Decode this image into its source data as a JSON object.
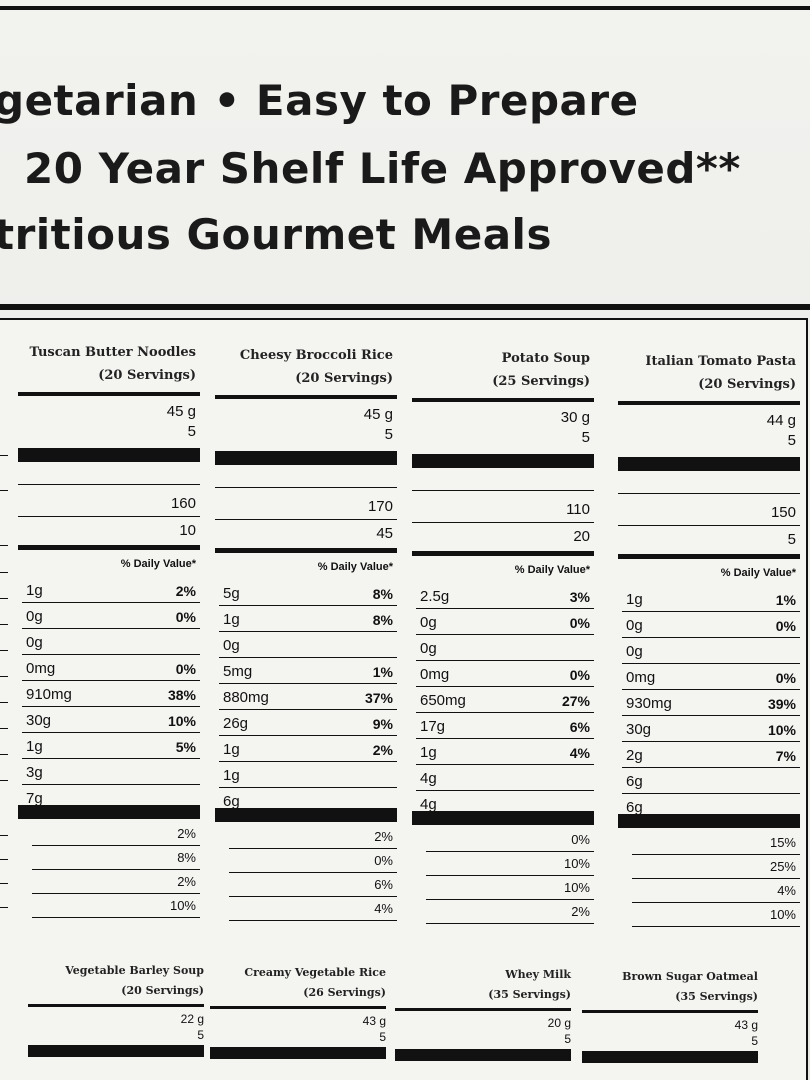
{
  "header": {
    "lines": [
      "getarian  •  Easy to Prepare",
      "20 Year Shelf Life Approved**",
      "tritious Gourmet Meals"
    ]
  },
  "columns": [
    {
      "name": "Tuscan Butter Noodles",
      "servings": "(20 Servings)",
      "serving_size": "45 g",
      "count": "5",
      "calories": "160",
      "fat_calories": "10",
      "dv_header": "% Daily Value*",
      "rows": [
        {
          "amount": "1g",
          "dv": "2%"
        },
        {
          "amount": "0g",
          "dv": "0%"
        },
        {
          "amount": "0g"
        },
        {
          "amount": "0mg",
          "dv": "0%"
        },
        {
          "amount": "910mg",
          "dv": "38%"
        },
        {
          "amount": "30g",
          "dv": "10%"
        },
        {
          "amount": "1g",
          "dv": "5%"
        },
        {
          "amount": "3g"
        },
        {
          "amount": "7g"
        }
      ],
      "vitamins": [
        "2%",
        "8%",
        "2%",
        "10%"
      ]
    },
    {
      "name": "Cheesy Broccoli Rice",
      "servings": "(20 Servings)",
      "serving_size": "45 g",
      "count": "5",
      "calories": "170",
      "fat_calories": "45",
      "dv_header": "% Daily Value*",
      "rows": [
        {
          "amount": "5g",
          "dv": "8%"
        },
        {
          "amount": "1g",
          "dv": "8%"
        },
        {
          "amount": "0g"
        },
        {
          "amount": "5mg",
          "dv": "1%"
        },
        {
          "amount": "880mg",
          "dv": "37%"
        },
        {
          "amount": "26g",
          "dv": "9%"
        },
        {
          "amount": "1g",
          "dv": "2%"
        },
        {
          "amount": "1g"
        },
        {
          "amount": "6g"
        }
      ],
      "vitamins": [
        "2%",
        "0%",
        "6%",
        "4%"
      ]
    },
    {
      "name": "Potato Soup",
      "servings": "(25 Servings)",
      "serving_size": "30 g",
      "count": "5",
      "calories": "110",
      "fat_calories": "20",
      "dv_header": "% Daily Value*",
      "rows": [
        {
          "amount": "2.5g",
          "dv": "3%"
        },
        {
          "amount": "0g",
          "dv": "0%"
        },
        {
          "amount": "0g"
        },
        {
          "amount": "0mg",
          "dv": "0%"
        },
        {
          "amount": "650mg",
          "dv": "27%"
        },
        {
          "amount": "17g",
          "dv": "6%"
        },
        {
          "amount": "1g",
          "dv": "4%"
        },
        {
          "amount": "4g"
        },
        {
          "amount": "4g"
        }
      ],
      "vitamins": [
        "0%",
        "10%",
        "10%",
        "2%"
      ]
    },
    {
      "name": "Italian Tomato Pasta",
      "servings": "(20 Servings)",
      "serving_size": "44 g",
      "count": "5",
      "calories": "150",
      "fat_calories": "5",
      "dv_header": "% Daily Value*",
      "rows": [
        {
          "amount": "1g",
          "dv": "1%"
        },
        {
          "amount": "0g",
          "dv": "0%"
        },
        {
          "amount": "0g"
        },
        {
          "amount": "0mg",
          "dv": "0%"
        },
        {
          "amount": "930mg",
          "dv": "39%"
        },
        {
          "amount": "30g",
          "dv": "10%"
        },
        {
          "amount": "2g",
          "dv": "7%"
        },
        {
          "amount": "6g"
        },
        {
          "amount": "6g"
        }
      ],
      "vitamins": [
        "15%",
        "25%",
        "4%",
        "10%"
      ]
    }
  ],
  "bottom_columns": [
    {
      "name": "Vegetable Barley Soup",
      "servings": "(20 Servings)",
      "serving_size": "22 g",
      "count": "5"
    },
    {
      "name": "Creamy Vegetable Rice",
      "servings": "(26 Servings)",
      "serving_size": "43 g",
      "count": "5"
    },
    {
      "name": "Whey Milk",
      "servings": "(35 Servings)",
      "serving_size": "20 g",
      "count": "5"
    },
    {
      "name": "Brown Sugar Oatmeal",
      "servings": "(35 Servings)",
      "serving_size": "43 g",
      "count": "5"
    }
  ]
}
